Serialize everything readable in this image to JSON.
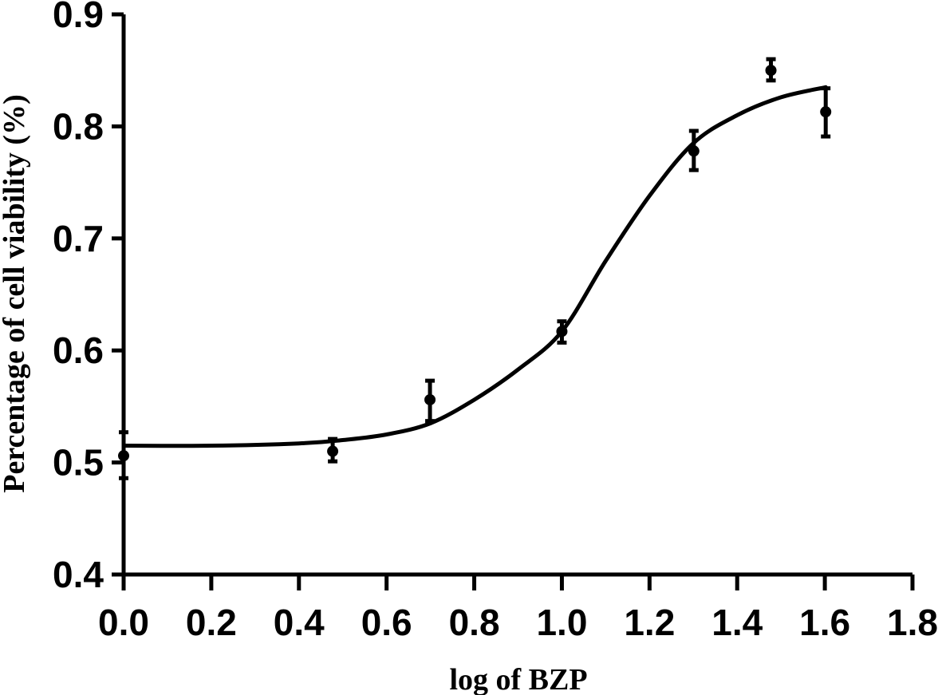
{
  "chart_data": {
    "type": "scatter",
    "title": "",
    "xlabel": "log of BZP",
    "ylabel": "Percentage of  cell viability (%)",
    "xlim": [
      0.0,
      1.8
    ],
    "ylim": [
      0.4,
      0.9
    ],
    "xticks": [
      "0.0",
      "0.2",
      "0.4",
      "0.6",
      "0.8",
      "1.0",
      "1.2",
      "1.4",
      "1.6",
      "1.8"
    ],
    "yticks": [
      "0.4",
      "0.5",
      "0.6",
      "0.7",
      "0.8",
      "0.9"
    ],
    "grid": false,
    "points": [
      {
        "x": 0.0,
        "y": 0.506,
        "err_low": 0.486,
        "err_high": 0.527
      },
      {
        "x": 0.477,
        "y": 0.51,
        "err_low": 0.501,
        "err_high": 0.521
      },
      {
        "x": 0.699,
        "y": 0.556,
        "err_low": 0.537,
        "err_high": 0.573
      },
      {
        "x": 1.0,
        "y": 0.617,
        "err_low": 0.607,
        "err_high": 0.626
      },
      {
        "x": 1.301,
        "y": 0.778,
        "err_low": 0.761,
        "err_high": 0.796
      },
      {
        "x": 1.477,
        "y": 0.85,
        "err_low": 0.841,
        "err_high": 0.86
      },
      {
        "x": 1.602,
        "y": 0.813,
        "err_low": 0.791,
        "err_high": 0.834
      }
    ],
    "fit_curve": {
      "x": [
        0.0,
        0.2,
        0.4,
        0.5,
        0.6,
        0.7,
        0.8,
        0.9,
        1.0,
        1.1,
        1.2,
        1.3,
        1.4,
        1.5,
        1.602
      ],
      "y": [
        0.515,
        0.515,
        0.517,
        0.52,
        0.525,
        0.535,
        0.556,
        0.583,
        0.617,
        0.68,
        0.738,
        0.785,
        0.81,
        0.826,
        0.835
      ]
    }
  }
}
